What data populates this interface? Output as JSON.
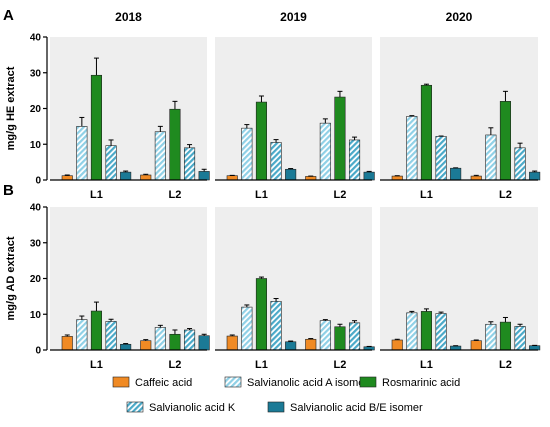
{
  "chart_data": [
    {
      "type": "bar",
      "panel_letter": "A",
      "ylabel": "mg/g HE extract",
      "ylim": [
        0,
        40
      ],
      "yticks": [
        0,
        10,
        20,
        30,
        40
      ],
      "facets": [
        {
          "label": "2018",
          "groups": [
            "L1",
            "L2"
          ],
          "series": [
            {
              "key": "caffeic",
              "values": [
                1.2,
                1.4
              ],
              "errors": [
                0.2,
                0.2
              ]
            },
            {
              "key": "salvA",
              "values": [
                15.0,
                13.5
              ],
              "errors": [
                2.5,
                1.5
              ]
            },
            {
              "key": "rosmarinic",
              "values": [
                29.3,
                19.8
              ],
              "errors": [
                4.8,
                2.2
              ]
            },
            {
              "key": "salvK",
              "values": [
                9.6,
                9.0
              ],
              "errors": [
                1.6,
                0.9
              ]
            },
            {
              "key": "salvBE",
              "values": [
                2.2,
                2.4
              ],
              "errors": [
                0.3,
                0.6
              ]
            }
          ]
        },
        {
          "label": "2019",
          "groups": [
            "L1",
            "L2"
          ],
          "series": [
            {
              "key": "caffeic",
              "values": [
                1.2,
                1.0
              ],
              "errors": [
                0.1,
                0.1
              ]
            },
            {
              "key": "salvA",
              "values": [
                14.5,
                15.9
              ],
              "errors": [
                1.0,
                1.2
              ]
            },
            {
              "key": "rosmarinic",
              "values": [
                21.8,
                23.2
              ],
              "errors": [
                1.7,
                1.6
              ]
            },
            {
              "key": "salvK",
              "values": [
                10.5,
                11.2
              ],
              "errors": [
                0.8,
                0.8
              ]
            },
            {
              "key": "salvBE",
              "values": [
                3.0,
                2.2
              ],
              "errors": [
                0.2,
                0.2
              ]
            }
          ]
        },
        {
          "label": "2020",
          "groups": [
            "L1",
            "L2"
          ],
          "series": [
            {
              "key": "caffeic",
              "values": [
                1.1,
                1.1
              ],
              "errors": [
                0.1,
                0.2
              ]
            },
            {
              "key": "salvA",
              "values": [
                17.8,
                12.6
              ],
              "errors": [
                0.2,
                2.0
              ]
            },
            {
              "key": "rosmarinic",
              "values": [
                26.5,
                22.0
              ],
              "errors": [
                0.3,
                2.8
              ]
            },
            {
              "key": "salvK",
              "values": [
                12.2,
                9.0
              ],
              "errors": [
                0.1,
                1.3
              ]
            },
            {
              "key": "salvBE",
              "values": [
                3.3,
                2.2
              ],
              "errors": [
                0.1,
                0.3
              ]
            }
          ]
        }
      ]
    },
    {
      "type": "bar",
      "panel_letter": "B",
      "ylabel": "mg/g AD extract",
      "ylim": [
        0,
        40
      ],
      "yticks": [
        0,
        10,
        20,
        30,
        40
      ],
      "facets": [
        {
          "label": "",
          "groups": [
            "L1",
            "L2"
          ],
          "series": [
            {
              "key": "caffeic",
              "values": [
                3.8,
                2.6
              ],
              "errors": [
                0.4,
                0.3
              ]
            },
            {
              "key": "salvA",
              "values": [
                8.5,
                6.3
              ],
              "errors": [
                1.0,
                0.6
              ]
            },
            {
              "key": "rosmarinic",
              "values": [
                10.9,
                4.4
              ],
              "errors": [
                2.5,
                1.2
              ]
            },
            {
              "key": "salvK",
              "values": [
                8.0,
                5.6
              ],
              "errors": [
                0.6,
                0.4
              ]
            },
            {
              "key": "salvBE",
              "values": [
                1.6,
                4.0
              ],
              "errors": [
                0.2,
                0.4
              ]
            }
          ]
        },
        {
          "label": "",
          "groups": [
            "L1",
            "L2"
          ],
          "series": [
            {
              "key": "caffeic",
              "values": [
                3.9,
                3.0
              ],
              "errors": [
                0.3,
                0.2
              ]
            },
            {
              "key": "salvA",
              "values": [
                12.0,
                8.2
              ],
              "errors": [
                0.6,
                0.3
              ]
            },
            {
              "key": "rosmarinic",
              "values": [
                20.0,
                6.5
              ],
              "errors": [
                0.4,
                0.7
              ]
            },
            {
              "key": "salvK",
              "values": [
                13.6,
                7.6
              ],
              "errors": [
                0.8,
                0.6
              ]
            },
            {
              "key": "salvBE",
              "values": [
                2.3,
                0.9
              ],
              "errors": [
                0.2,
                0.1
              ]
            }
          ]
        },
        {
          "label": "",
          "groups": [
            "L1",
            "L2"
          ],
          "series": [
            {
              "key": "caffeic",
              "values": [
                2.8,
                2.6
              ],
              "errors": [
                0.2,
                0.2
              ]
            },
            {
              "key": "salvA",
              "values": [
                10.4,
                7.2
              ],
              "errors": [
                0.4,
                0.7
              ]
            },
            {
              "key": "rosmarinic",
              "values": [
                10.8,
                7.8
              ],
              "errors": [
                0.7,
                1.3
              ]
            },
            {
              "key": "salvK",
              "values": [
                10.2,
                6.6
              ],
              "errors": [
                0.4,
                0.6
              ]
            },
            {
              "key": "salvBE",
              "values": [
                1.1,
                1.2
              ],
              "errors": [
                0.1,
                0.1
              ]
            }
          ]
        }
      ]
    }
  ],
  "legend": [
    {
      "key": "caffeic",
      "label": "Caffeic acid",
      "color": "#f08a24",
      "pattern": "solid"
    },
    {
      "key": "salvA",
      "label": "Salvianolic acid A isomer",
      "color": "#8fd0e6",
      "pattern": "hatch"
    },
    {
      "key": "rosmarinic",
      "label": "Rosmarinic acid",
      "color": "#1f8a1f",
      "pattern": "solid"
    },
    {
      "key": "salvK",
      "label": "Salvianolic acid K",
      "color": "#4aa9c8",
      "pattern": "hatch"
    },
    {
      "key": "salvBE",
      "label": "Salvianolic acid B/E isomer",
      "color": "#1b7a96",
      "pattern": "solid"
    }
  ],
  "colors": {
    "panel_background": "#eeeeee",
    "axis": "#000000"
  }
}
